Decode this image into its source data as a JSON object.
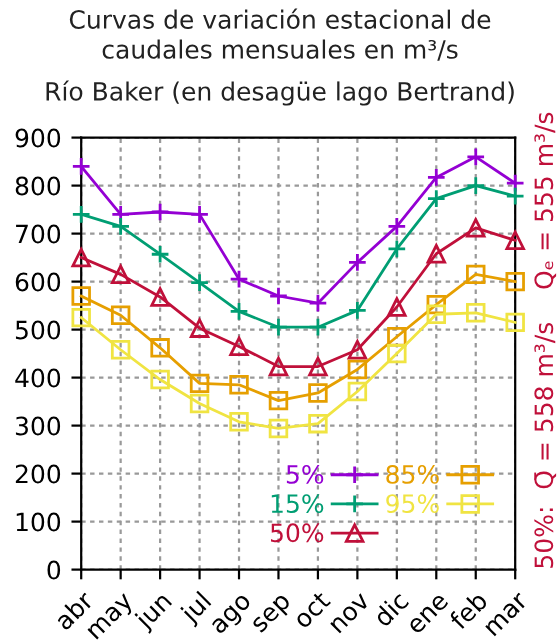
{
  "chart_data": {
    "type": "line",
    "title": "Curvas de variación estacional de\ncaudales mensuales en m³/s",
    "subtitle": "Río Baker (en desagüe lago Bertrand)",
    "categories": [
      "abr",
      "may",
      "jun",
      "jul",
      "ago",
      "sep",
      "oct",
      "nov",
      "dic",
      "ene",
      "feb",
      "mar"
    ],
    "series": [
      {
        "name": "5%",
        "color": "#9400d3",
        "marker": "cross",
        "values": [
          840,
          740,
          745,
          740,
          605,
          570,
          555,
          640,
          715,
          817,
          860,
          805
        ]
      },
      {
        "name": "15%",
        "color": "#009e73",
        "marker": "cross",
        "values": [
          740,
          715,
          657,
          598,
          538,
          505,
          505,
          540,
          668,
          773,
          800,
          778
        ]
      },
      {
        "name": "50%",
        "color": "#c0103a",
        "marker": "triangle",
        "values": [
          650,
          615,
          568,
          503,
          465,
          423,
          423,
          458,
          547,
          658,
          712,
          686
        ]
      },
      {
        "name": "85%",
        "color": "#e69f00",
        "marker": "square",
        "values": [
          570,
          530,
          462,
          388,
          385,
          352,
          368,
          417,
          485,
          552,
          615,
          600
        ]
      },
      {
        "name": "95%",
        "color": "#f0e442",
        "marker": "square",
        "values": [
          525,
          458,
          396,
          346,
          308,
          294,
          304,
          371,
          450,
          532,
          535,
          515
        ]
      }
    ],
    "ylim": [
      0,
      900
    ],
    "yticks": [
      0,
      100,
      200,
      300,
      400,
      500,
      600,
      700,
      800,
      900
    ],
    "grid": true,
    "legend": "bottom right",
    "annotations": [
      "50%:  Q̄ = 558 m³/s    Qₑ = 555 m³/s"
    ]
  }
}
